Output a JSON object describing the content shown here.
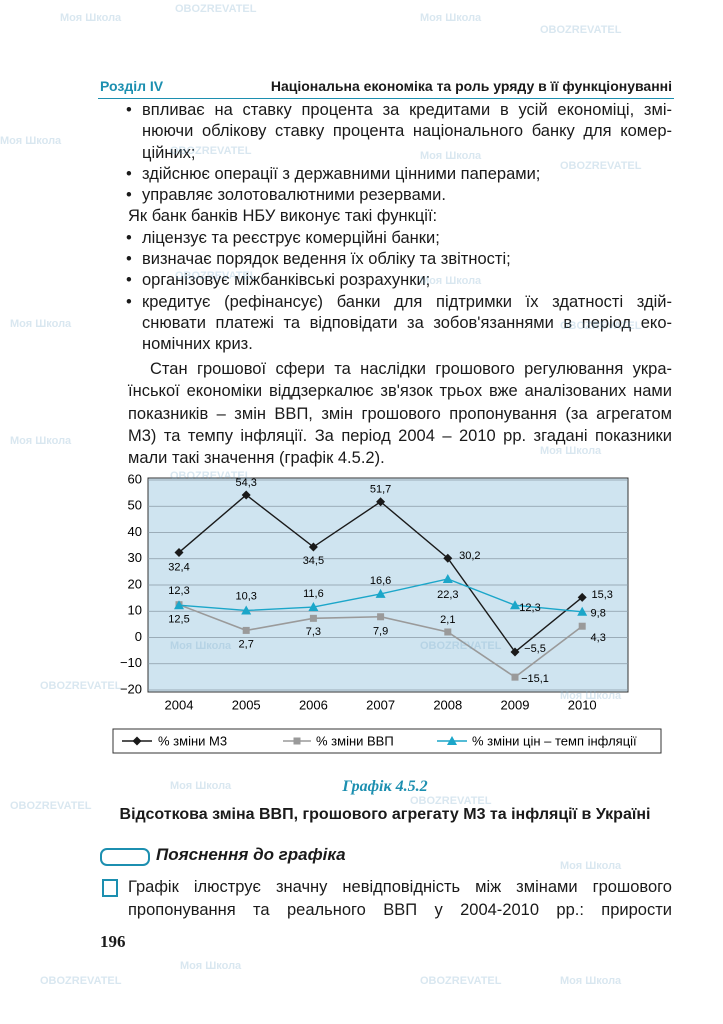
{
  "header": {
    "section": "Розділ IV",
    "title": "Національна економіка та роль уряду в її функціонуванні"
  },
  "bullets_1": [
    [
      "впливає на ставку процента за кредитами в усій економіці, змі-",
      "нюючи облікову ставку процента національного банку для комер-",
      "ційних;"
    ],
    [
      "здійснює операції з державними цінними паперами;"
    ],
    [
      "управляє золотовалютними резервами."
    ]
  ],
  "intro_2": "Як банк банків НБУ виконує такі функції:",
  "bullets_2": [
    [
      "ліцензує та реєструє комерційні банки;"
    ],
    [
      "визначає порядок ведення їх обліку та звітності;"
    ],
    [
      "організовує міжбанківські розрахунки;"
    ],
    [
      "кредитує (рефінансує) банки для підтримки їх здатності здій-",
      "снювати платежі та відповідати за зобов'язаннями в період еко-",
      "номічних криз."
    ]
  ],
  "paragraph": [
    "Стан грошової сфери та наслідки грошового регулювання укра-",
    "їнської економіки віддзеркалює зв'язок трьох вже аналізованих нами",
    "показників – змін ВВП, змін грошового пропонування (за агрегатом",
    "М3) та темпу інфляції. За період 2004 – 2010 рр. згадані показники",
    "мали такі значення (графік 4.5.2)."
  ],
  "chart_data": {
    "type": "line",
    "categories": [
      "2004",
      "2005",
      "2006",
      "2007",
      "2008",
      "2009",
      "2010"
    ],
    "series": [
      {
        "name": "% зміни М3",
        "color": "#1a1a1a",
        "marker": "diamond",
        "values": [
          32.4,
          54.3,
          34.5,
          51.7,
          30.2,
          -5.5,
          15.3
        ],
        "value_labels": [
          "32,4",
          "54,3",
          "34,5",
          "51,7",
          "30,2",
          "−5,5",
          "15,3"
        ]
      },
      {
        "name": "% зміни ВВП",
        "color": "#9a9a9a",
        "marker": "square",
        "values": [
          12.5,
          2.7,
          7.3,
          7.9,
          2.1,
          -15.1,
          4.3
        ],
        "value_labels": [
          "12,5",
          "2,7",
          "7,3",
          "7,9",
          "2,1",
          "−15,1",
          "4,3"
        ]
      },
      {
        "name": "% зміни цін – темп інфляції",
        "color": "#1ba6c9",
        "marker": "triangle",
        "values": [
          12.3,
          10.3,
          11.6,
          16.6,
          22.3,
          12.3,
          9.8
        ],
        "value_labels": [
          "12,3",
          "10,3",
          "11,6",
          "16,6",
          "22,3",
          "12,3",
          "9,8"
        ]
      }
    ],
    "ylim": [
      -20,
      60
    ],
    "yticks": [
      60,
      50,
      40,
      30,
      20,
      10,
      0,
      {
        "value": -10,
        "label": "−10"
      },
      {
        "value": -20,
        "label": "−20"
      }
    ],
    "grid": true,
    "legend": "bottom"
  },
  "figure_label": "Графік 4.5.2",
  "figure_title": "Відсоткова зміна ВВП, грошового агрегату М3 та інфляції в Україні",
  "explanation_heading": "Пояснення до графіка",
  "explanation": [
    "Графік ілюструє значну невідповідність між змінами грошового",
    "пропонування та реального ВВП у 2004-2010 рр.: прирости"
  ],
  "page_number": "196",
  "watermarks": [
    "Моя Школа",
    "OBOZREVATEL"
  ]
}
